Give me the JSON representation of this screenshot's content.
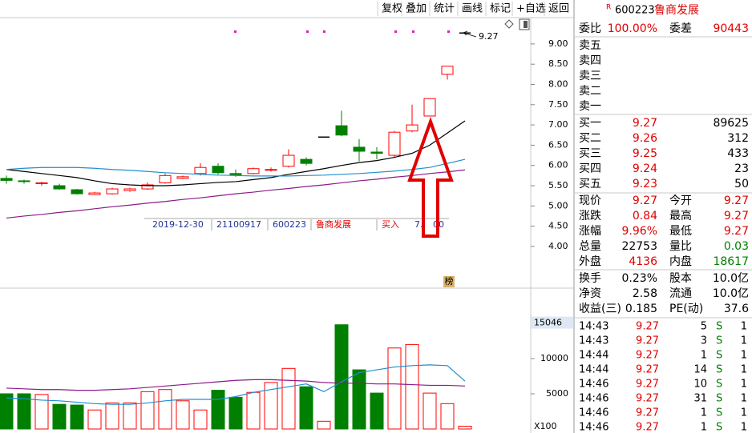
{
  "toolbar": [
    "复权",
    "叠加",
    "统计",
    "画线",
    "标记",
    "+自选",
    "返回"
  ],
  "header": {
    "badge": "R",
    "code": "600223",
    "name": "鲁商发展"
  },
  "chart": {
    "up_color": "#ff0000",
    "down_color": "#008000",
    "flat_color": "#000000",
    "price_lim": [
      2.97,
      9.65
    ],
    "price_ticks": [
      {
        "value": 4,
        "label": "4.00"
      },
      {
        "value": 4.5,
        "label": "4.50"
      },
      {
        "value": 5,
        "label": "5.00"
      },
      {
        "value": 5.5,
        "label": "5.50"
      },
      {
        "value": 6,
        "label": "6.00"
      },
      {
        "value": 6.5,
        "label": "6.50"
      },
      {
        "value": 7,
        "label": "7.00"
      },
      {
        "value": 7.5,
        "label": "7.50"
      },
      {
        "value": 8,
        "label": "8.00"
      },
      {
        "value": 8.5,
        "label": "8.50"
      },
      {
        "value": 9,
        "label": "9.00"
      }
    ],
    "high_label": "9.27",
    "candles": [
      {
        "open": 5.68,
        "close": 5.63,
        "high": 5.75,
        "low": 5.55
      },
      {
        "open": 5.62,
        "close": 5.6,
        "high": 5.65,
        "low": 5.55
      },
      {
        "open": 5.55,
        "close": 5.57,
        "high": 5.6,
        "low": 5.5
      },
      {
        "open": 5.5,
        "close": 5.42,
        "high": 5.55,
        "low": 5.4
      },
      {
        "open": 5.4,
        "close": 5.3,
        "high": 5.42,
        "low": 5.28
      },
      {
        "open": 5.28,
        "close": 5.32,
        "high": 5.35,
        "low": 5.27
      },
      {
        "open": 5.3,
        "close": 5.42,
        "high": 5.45,
        "low": 5.28
      },
      {
        "open": 5.38,
        "close": 5.42,
        "high": 5.45,
        "low": 5.35
      },
      {
        "open": 5.42,
        "close": 5.52,
        "high": 5.58,
        "low": 5.4
      },
      {
        "open": 5.57,
        "close": 5.75,
        "high": 5.8,
        "low": 5.55
      },
      {
        "open": 5.68,
        "close": 5.72,
        "high": 5.75,
        "low": 5.66
      },
      {
        "open": 5.8,
        "close": 5.95,
        "high": 6.05,
        "low": 5.75
      },
      {
        "open": 5.98,
        "close": 5.82,
        "high": 6.05,
        "low": 5.78
      },
      {
        "open": 5.8,
        "close": 5.77,
        "high": 5.9,
        "low": 5.72
      },
      {
        "open": 5.8,
        "close": 5.92,
        "high": 5.95,
        "low": 5.78
      },
      {
        "open": 5.88,
        "close": 5.9,
        "high": 5.95,
        "low": 5.85
      },
      {
        "open": 5.98,
        "close": 6.25,
        "high": 6.4,
        "low": 5.95
      },
      {
        "open": 6.15,
        "close": 6.05,
        "high": 6.2,
        "low": 6.0
      },
      {
        "open": 6.7,
        "close": 6.7,
        "high": 6.7,
        "low": 6.7
      },
      {
        "open": 6.98,
        "close": 6.75,
        "high": 7.35,
        "low": 6.72
      },
      {
        "open": 6.45,
        "close": 6.35,
        "high": 6.65,
        "low": 6.1
      },
      {
        "open": 6.33,
        "close": 6.3,
        "high": 6.45,
        "low": 6.15
      },
      {
        "open": 6.25,
        "close": 6.82,
        "high": 6.85,
        "low": 6.2
      },
      {
        "open": 6.85,
        "close": 7.0,
        "high": 7.5,
        "low": 6.82
      },
      {
        "open": 7.22,
        "close": 7.65,
        "high": 7.65,
        "low": 7.22
      },
      {
        "open": 8.25,
        "close": 8.45,
        "high": 8.45,
        "low": 8.12
      },
      {
        "open": 9.27,
        "close": 9.27,
        "high": 9.27,
        "low": 9.27
      }
    ],
    "ma_lines": [
      {
        "color": "#000000",
        "values": [
          5.9,
          5.85,
          5.8,
          5.75,
          5.7,
          5.62,
          5.55,
          5.52,
          5.5,
          5.5,
          5.52,
          5.55,
          5.58,
          5.6,
          5.65,
          5.7,
          5.78,
          5.85,
          5.92,
          6.0,
          6.07,
          6.12,
          6.2,
          6.3,
          6.5,
          6.8,
          7.1
        ]
      },
      {
        "color": "#1e8fd0",
        "values": [
          5.9,
          5.93,
          5.95,
          5.95,
          5.95,
          5.93,
          5.9,
          5.88,
          5.85,
          5.82,
          5.8,
          5.78,
          5.76,
          5.75,
          5.74,
          5.74,
          5.74,
          5.75,
          5.76,
          5.78,
          5.8,
          5.83,
          5.86,
          5.9,
          5.95,
          6.05,
          6.15
        ]
      },
      {
        "color": "#8b1a8b",
        "values": [
          4.7,
          4.75,
          4.79,
          4.84,
          4.88,
          4.93,
          4.98,
          5.02,
          5.07,
          5.11,
          5.16,
          5.2,
          5.25,
          5.3,
          5.34,
          5.39,
          5.43,
          5.48,
          5.52,
          5.57,
          5.62,
          5.66,
          5.71,
          5.75,
          5.8,
          5.84,
          5.89
        ]
      }
    ],
    "trade_marker": [
      "2019-12-30",
      "21100917",
      "600223",
      "鲁商发展",
      "买入",
      "7.",
      "00"
    ],
    "rank_badge": "榜",
    "volume_lim": [
      0,
      19770
    ],
    "volume_ticks": [
      5000,
      10000
    ],
    "volume_top": 15046,
    "volume_unit": "X100",
    "volumes": [
      5000,
      5000,
      4900,
      3500,
      3400,
      2700,
      3700,
      3700,
      5300,
      5600,
      4000,
      2700,
      5500,
      4500,
      5200,
      6600,
      8600,
      6000,
      1100,
      14800,
      8400,
      5100,
      11500,
      12000,
      5100,
      3600,
      400
    ],
    "volume_ma": [
      {
        "color": "#1e8fd0",
        "values": [
          4400,
          4300,
          4100,
          4000,
          3800,
          3600,
          3500,
          3500,
          3700,
          4000,
          4200,
          4200,
          4200,
          4600,
          5200,
          5600,
          6000,
          6400,
          5300,
          6700,
          8000,
          8400,
          8800,
          9000,
          9100,
          9000,
          6800
        ]
      },
      {
        "color": "#8b1a8b",
        "values": [
          5800,
          5700,
          5600,
          5600,
          5500,
          5500,
          5600,
          5700,
          5900,
          6100,
          6300,
          6500,
          6700,
          6900,
          7000,
          7000,
          6900,
          6800,
          6600,
          6500,
          6500,
          6400,
          6400,
          6300,
          6200,
          6200,
          6100
        ]
      }
    ]
  },
  "panel": {
    "ratio": [
      [
        "委比",
        {
          "text": "100.00%",
          "color": "#e00000"
        },
        "委差",
        {
          "text": "90443",
          "color": "#e00000"
        }
      ]
    ],
    "asks": [
      [
        "卖五"
      ],
      [
        "卖四"
      ],
      [
        "卖三"
      ],
      [
        "卖二"
      ],
      [
        "卖一"
      ]
    ],
    "bids": [
      [
        "买一",
        {
          "text": "9.27",
          "color": "#e00000"
        },
        "89625"
      ],
      [
        "买二",
        {
          "text": "9.26",
          "color": "#e00000"
        },
        "312"
      ],
      [
        "买三",
        {
          "text": "9.25",
          "color": "#e00000"
        },
        "433"
      ],
      [
        "买四",
        {
          "text": "9.24",
          "color": "#e00000"
        },
        "23"
      ],
      [
        "买五",
        {
          "text": "9.23",
          "color": "#e00000"
        },
        "50"
      ]
    ],
    "stats": [
      [
        "现价",
        {
          "text": "9.27",
          "color": "#e00000"
        },
        "今开",
        {
          "text": "9.27",
          "color": "#e00000"
        }
      ],
      [
        "涨跌",
        {
          "text": "0.84",
          "color": "#e00000"
        },
        "最高",
        {
          "text": "9.27",
          "color": "#e00000"
        }
      ],
      [
        "涨幅",
        {
          "text": "9.96%",
          "color": "#e00000"
        },
        "最低",
        {
          "text": "9.27",
          "color": "#e00000"
        }
      ],
      [
        "总量",
        "22753",
        "量比",
        {
          "text": "0.03",
          "color": "#008000"
        }
      ],
      [
        "外盘",
        {
          "text": "4136",
          "color": "#e00000"
        },
        "内盘",
        {
          "text": "18617",
          "color": "#008000"
        }
      ]
    ],
    "fundamentals": [
      [
        "换手",
        "0.23%",
        "股本",
        "10.0亿"
      ],
      [
        "净资",
        "2.58",
        "流通",
        "10.0亿"
      ],
      [
        "收益(三)",
        "0.185",
        "PE(动)",
        "37.6"
      ]
    ],
    "trades": [
      [
        "14:43",
        {
          "text": "9.27",
          "color": "#e00000"
        },
        "5",
        {
          "text": "S",
          "color": "#008000"
        },
        "1"
      ],
      [
        "14:43",
        {
          "text": "9.27",
          "color": "#e00000"
        },
        "3",
        {
          "text": "S",
          "color": "#008000"
        },
        "1"
      ],
      [
        "14:44",
        {
          "text": "9.27",
          "color": "#e00000"
        },
        "1",
        {
          "text": "S",
          "color": "#008000"
        },
        "1"
      ],
      [
        "14:44",
        {
          "text": "9.27",
          "color": "#e00000"
        },
        "14",
        {
          "text": "S",
          "color": "#008000"
        },
        "1"
      ],
      [
        "14:46",
        {
          "text": "9.27",
          "color": "#e00000"
        },
        "10",
        {
          "text": "S",
          "color": "#008000"
        },
        "1"
      ],
      [
        "14:46",
        {
          "text": "9.27",
          "color": "#e00000"
        },
        "31",
        {
          "text": "S",
          "color": "#008000"
        },
        "1"
      ],
      [
        "14:46",
        {
          "text": "9.27",
          "color": "#e00000"
        },
        "1",
        {
          "text": "S",
          "color": "#008000"
        },
        "1"
      ],
      [
        "14:46",
        {
          "text": "9.27",
          "color": "#e00000"
        },
        "1",
        {
          "text": "S",
          "color": "#008000"
        },
        "1"
      ]
    ]
  }
}
